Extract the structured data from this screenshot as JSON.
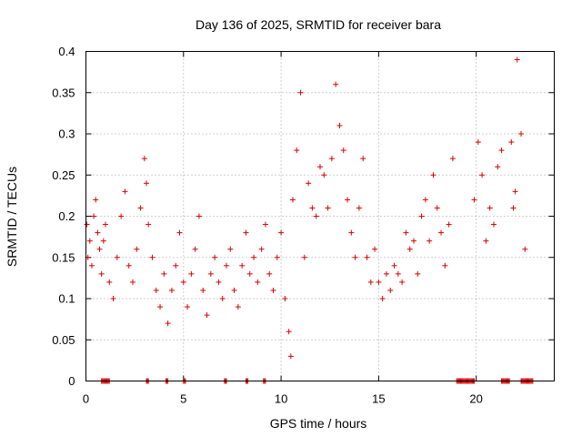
{
  "chart_data": {
    "type": "scatter",
    "title": "Day 136 of 2025, SRMTID for receiver bara",
    "xlabel": "GPS time / hours",
    "ylabel": "SRMTID / TECUs",
    "xlim": [
      0,
      24
    ],
    "ylim": [
      0,
      0.4
    ],
    "xticks": [
      0,
      5,
      10,
      15,
      20
    ],
    "xtick_labels": [
      "0",
      "5",
      "10",
      "15",
      "20"
    ],
    "yticks": [
      0,
      0.05,
      0.1,
      0.15,
      0.2,
      0.25,
      0.3,
      0.35,
      0.4
    ],
    "ytick_labels": [
      "0",
      "0.05",
      "0.1",
      "0.15",
      "0.2",
      "0.25",
      "0.3",
      "0.35",
      "0.4"
    ],
    "grid": true,
    "marker": "+",
    "marker_color": "#dd0000",
    "zero_value_ranges": [
      [
        0.8,
        1.2
      ],
      [
        3.1,
        3.2
      ],
      [
        4.1,
        4.2
      ],
      [
        5.0,
        5.1
      ],
      [
        7.1,
        7.2
      ],
      [
        8.2,
        8.3
      ],
      [
        9.1,
        9.2
      ],
      [
        19.0,
        19.9
      ],
      [
        21.3,
        21.7
      ],
      [
        22.3,
        22.9
      ]
    ],
    "series": [
      {
        "name": "SRMTID",
        "x": [
          0.05,
          0.1,
          0.2,
          0.3,
          0.4,
          0.5,
          0.6,
          0.7,
          0.8,
          0.9,
          1.0,
          1.2,
          1.4,
          1.6,
          1.8,
          2.0,
          2.2,
          2.4,
          2.6,
          2.8,
          3.0,
          3.1,
          3.2,
          3.4,
          3.6,
          3.8,
          4.0,
          4.2,
          4.4,
          4.6,
          4.8,
          5.0,
          5.2,
          5.4,
          5.6,
          5.8,
          6.0,
          6.2,
          6.4,
          6.6,
          6.8,
          7.0,
          7.2,
          7.4,
          7.6,
          7.8,
          8.0,
          8.2,
          8.4,
          8.6,
          8.8,
          9.0,
          9.2,
          9.4,
          9.6,
          9.8,
          10.0,
          10.2,
          10.4,
          10.5,
          10.6,
          10.8,
          11.0,
          11.2,
          11.4,
          11.6,
          11.8,
          12.0,
          12.2,
          12.4,
          12.6,
          12.8,
          13.0,
          13.2,
          13.4,
          13.6,
          13.8,
          14.0,
          14.2,
          14.4,
          14.6,
          14.8,
          15.0,
          15.2,
          15.4,
          15.6,
          15.8,
          16.0,
          16.2,
          16.4,
          16.6,
          16.8,
          17.0,
          17.2,
          17.4,
          17.6,
          17.8,
          18.0,
          18.2,
          18.4,
          18.6,
          18.8,
          19.9,
          20.1,
          20.3,
          20.5,
          20.7,
          20.9,
          21.1,
          21.3,
          21.8,
          21.9,
          22.0,
          22.1,
          22.3,
          22.5
        ],
        "y": [
          0.19,
          0.15,
          0.17,
          0.14,
          0.2,
          0.22,
          0.18,
          0.16,
          0.13,
          0.17,
          0.19,
          0.12,
          0.1,
          0.15,
          0.2,
          0.23,
          0.14,
          0.12,
          0.16,
          0.21,
          0.27,
          0.24,
          0.19,
          0.15,
          0.11,
          0.09,
          0.13,
          0.07,
          0.11,
          0.14,
          0.18,
          0.12,
          0.09,
          0.13,
          0.16,
          0.2,
          0.11,
          0.08,
          0.13,
          0.15,
          0.12,
          0.1,
          0.14,
          0.16,
          0.11,
          0.09,
          0.14,
          0.18,
          0.13,
          0.15,
          0.12,
          0.16,
          0.19,
          0.13,
          0.11,
          0.15,
          0.18,
          0.1,
          0.06,
          0.03,
          0.22,
          0.28,
          0.35,
          0.15,
          0.24,
          0.21,
          0.2,
          0.26,
          0.25,
          0.21,
          0.27,
          0.36,
          0.31,
          0.28,
          0.22,
          0.18,
          0.15,
          0.21,
          0.27,
          0.15,
          0.12,
          0.16,
          0.12,
          0.1,
          0.13,
          0.11,
          0.14,
          0.13,
          0.12,
          0.18,
          0.16,
          0.17,
          0.13,
          0.2,
          0.22,
          0.17,
          0.25,
          0.21,
          0.18,
          0.14,
          0.19,
          0.27,
          0.22,
          0.29,
          0.25,
          0.17,
          0.21,
          0.19,
          0.26,
          0.28,
          0.29,
          0.21,
          0.23,
          0.39,
          0.3,
          0.16
        ]
      }
    ]
  }
}
